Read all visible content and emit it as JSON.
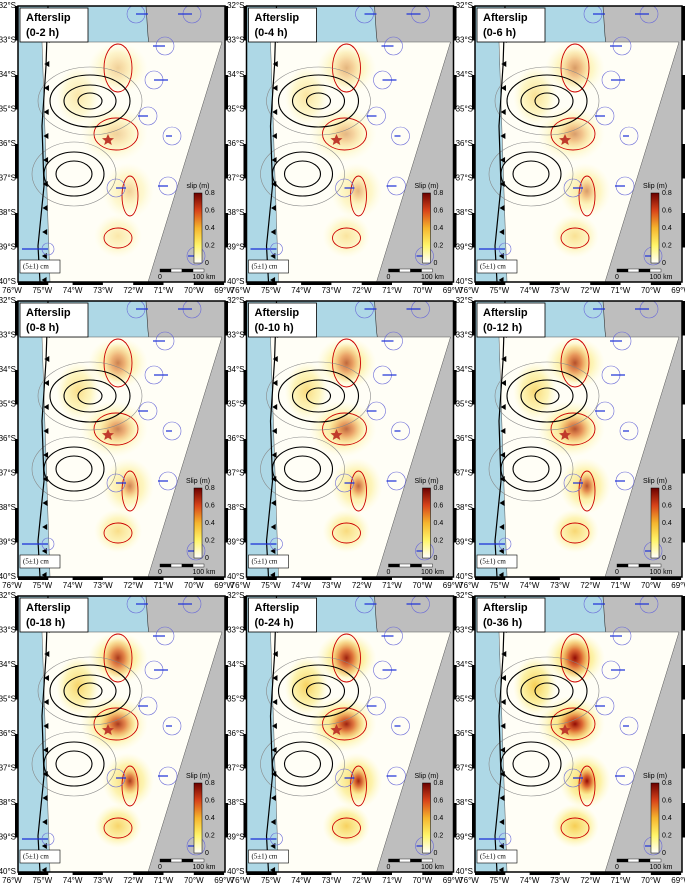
{
  "panels": [
    {
      "title": "Afterslip",
      "interval": "(0-2 h)",
      "colorbar_label": "slip (m)"
    },
    {
      "title": "Afterslip",
      "interval": "(0-4 h)",
      "colorbar_label": "Slip (m)"
    },
    {
      "title": "Afterslip",
      "interval": "(0-6 h)",
      "colorbar_label": "Slip (m)"
    },
    {
      "title": "Afterslip",
      "interval": "(0-8 h)",
      "colorbar_label": "Slip (m)"
    },
    {
      "title": "Afterslip",
      "interval": "(0-10 h)",
      "colorbar_label": "Slip (m)"
    },
    {
      "title": "Afterslip",
      "interval": "(0-12 h)",
      "colorbar_label": "Slip (m)"
    },
    {
      "title": "Afterslip",
      "interval": "(0-18 h)",
      "colorbar_label": "Slip (m)"
    },
    {
      "title": "Afterslip",
      "interval": "(0-24 h)",
      "colorbar_label": "Slip (m)"
    },
    {
      "title": "Afterslip",
      "interval": "(0-36 h)",
      "colorbar_label": "Slip (m)"
    }
  ],
  "lat_labels": [
    "32°S",
    "33°S",
    "34°S",
    "35°S",
    "36°S",
    "37°S",
    "38°S",
    "39°S",
    "40°S"
  ],
  "lon_labels": [
    "76°W",
    "75°W",
    "74°W",
    "73°W",
    "72°W",
    "71°W",
    "70°W",
    "69°W"
  ],
  "colorbar_ticks": [
    "0",
    "0.2",
    "0.4",
    "0.6",
    "0.8"
  ],
  "scale_bar": {
    "start": "0",
    "end": "100 km"
  },
  "gps_scale": "(5±1) cm"
}
